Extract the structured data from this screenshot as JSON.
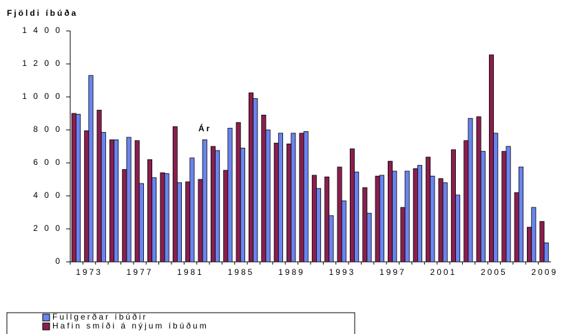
{
  "chart_data": {
    "type": "bar",
    "y_label": "Fjöldi íbúða",
    "annotation": "Ár",
    "categories": [
      null,
      "1973",
      null,
      null,
      null,
      "1977",
      null,
      null,
      null,
      "1981",
      null,
      null,
      null,
      "1985",
      null,
      null,
      null,
      "1989",
      null,
      null,
      null,
      "1993",
      null,
      null,
      null,
      "1997",
      null,
      null,
      null,
      "2001",
      null,
      null,
      null,
      "2005",
      null,
      null,
      null,
      "2009"
    ],
    "series": [
      {
        "name": "Fullgerðar íbúðir",
        "color": "#6a84f0",
        "values": [
          895,
          1130,
          785,
          740,
          755,
          475,
          510,
          535,
          480,
          630,
          740,
          675,
          810,
          690,
          990,
          800,
          780,
          780,
          790,
          445,
          280,
          370,
          545,
          295,
          525,
          550,
          550,
          585,
          520,
          480,
          405,
          870,
          670,
          780,
          700,
          575,
          330,
          115
        ]
      },
      {
        "name": "Hafin smíði á nýjum íbúðum",
        "color": "#8a1f4e",
        "values": [
          900,
          795,
          920,
          740,
          560,
          735,
          620,
          540,
          820,
          485,
          500,
          700,
          555,
          845,
          1025,
          890,
          720,
          715,
          780,
          525,
          515,
          575,
          685,
          450,
          520,
          610,
          330,
          565,
          635,
          505,
          680,
          735,
          880,
          1255,
          670,
          420,
          210,
          245
        ]
      }
    ],
    "ylim": [
      0,
      1400
    ],
    "yticks": [
      0,
      {
        "value": 200,
        "label": "2 0 0"
      },
      {
        "value": 400,
        "label": "4 0 0"
      },
      {
        "value": 600,
        "label": "6 0 0"
      },
      {
        "value": 800,
        "label": "8 0 0"
      },
      {
        "value": 1000,
        "label": "1 0 0 0"
      },
      {
        "value": 1200,
        "label": "1 2 0 0"
      },
      {
        "value": 1400,
        "label": "1 4 0 0"
      }
    ],
    "legend": "bottom-left"
  }
}
